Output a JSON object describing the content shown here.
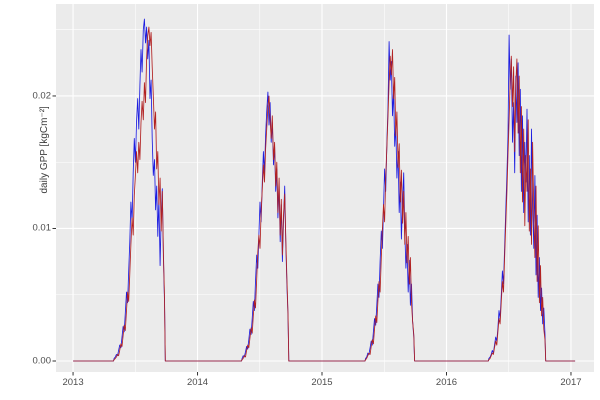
{
  "figure": {
    "background": "#ffffff",
    "panel_background": "#ebebeb",
    "grid_major_color": "#ffffff",
    "grid_minor_color": "#ffffff",
    "tick_mark_color": "#333333",
    "tick_label_color": "#4d4d4d"
  },
  "chart_data": {
    "type": "line",
    "title": "",
    "xlabel": "",
    "ylabel": "daily GPP [kgCm⁻²]",
    "legend": "none",
    "grid": true,
    "xlim": [
      2012.863,
      2017.185
    ],
    "ylim": [
      -0.00083,
      0.02694
    ],
    "x_ticks": [
      "2013",
      "2014",
      "2015",
      "2016",
      "2017"
    ],
    "x_tick_values": [
      2013,
      2014,
      2015,
      2016,
      2017
    ],
    "x_minor": [
      2013.5,
      2014.5,
      2015.5,
      2016.5
    ],
    "y_ticks": [
      "0.00",
      "0.01",
      "0.02"
    ],
    "y_tick_values": [
      0,
      0.01,
      0.02
    ],
    "y_minor": [
      0.005,
      0.015,
      0.025
    ],
    "y_scale": 0.0001,
    "series": [
      {
        "name": "series-blue",
        "color": "#1d1de0",
        "segments": [
          {
            "x0": 2013.0,
            "dx": 0.325,
            "v": [
              0,
              0
            ]
          },
          {
            "x0": 2013.33,
            "dx": 0.009,
            "v": [
              2,
              3,
              5,
              4,
              8,
              12,
              10,
              18,
              26,
              22,
              36,
              52,
              44,
              68,
              90,
              120,
              105,
              142,
              168,
              150,
              180,
              198,
              175,
              208,
              235,
              218,
              250,
              258,
              240,
              252,
              228,
              242,
              198,
              212,
              168,
              140,
              152,
              114,
              132,
              94,
              122,
              72,
              110,
              130,
              78,
              45
            ]
          },
          {
            "x0": 2013.741,
            "dx": 0.612,
            "v": [
              0,
              0
            ]
          },
          {
            "x0": 2014.358,
            "dx": 0.009,
            "v": [
              2,
              4,
              3,
              7,
              11,
              9,
              16,
              24,
              20,
              32,
              45,
              38,
              60,
              80,
              70,
              95,
              120,
              105,
              135,
              158,
              142,
              170,
              188,
              203,
              178,
              195,
              165,
              180,
              148,
              162,
              128,
              145,
              108,
              132,
              90,
              118,
              75,
              105,
              132,
              88,
              58,
              34
            ]
          },
          {
            "x0": 2014.733,
            "dx": 0.612,
            "v": [
              0,
              0
            ]
          },
          {
            "x0": 2015.35,
            "dx": 0.009,
            "v": [
              2,
              3,
              6,
              5,
              10,
              15,
              12,
              22,
              32,
              27,
              42,
              58,
              48,
              75,
              98,
              85,
              115,
              145,
              128,
              165,
              192,
              241,
              212,
              226,
              185,
              205,
              162,
              178,
              138,
              158,
              112,
              135,
              92,
              120,
              142,
              98,
              70,
              88,
              52,
              76,
              42,
              58,
              30,
              18
            ]
          },
          {
            "x0": 2015.744,
            "dx": 0.592,
            "v": [
              0,
              0
            ]
          },
          {
            "x0": 2016.341,
            "dx": 0.009,
            "v": [
              2,
              3,
              5,
              8,
              6,
              12,
              18,
              15,
              25,
              38,
              32,
              50,
              68,
              58,
              85,
              112,
              140,
              170,
              246,
              205,
              228,
              165,
              195,
              142,
              215,
              180,
              225,
              155,
              205,
              128,
              185,
              112,
              165,
              135,
              190,
              105,
              155,
              95,
              175,
              120,
              85,
              140,
              65,
              110,
              48,
              78,
              38,
              55,
              28,
              40,
              20
            ]
          },
          {
            "x0": 2016.797,
            "dx": 0.236,
            "v": [
              0,
              0
            ]
          }
        ]
      },
      {
        "name": "series-red",
        "color": "#b22222",
        "segments": [
          {
            "x0": 2013.0,
            "dx": 0.325,
            "v": [
              0,
              0
            ]
          },
          {
            "x0": 2013.33,
            "dx": 0.009,
            "v": [
              1,
              2,
              3,
              5,
              4,
              8,
              13,
              11,
              19,
              27,
              23,
              38,
              52,
              45,
              66,
              88,
              108,
              95,
              125,
              140,
              158,
              142,
              165,
              152,
              180,
              196,
              182,
              210,
              195,
              228,
              245,
              252,
              238,
              248,
              222,
              200,
              175,
              188,
              145,
              158,
              118,
              138,
              98,
              128,
              82,
              48
            ]
          },
          {
            "x0": 2013.741,
            "dx": 0.612,
            "v": [
              0,
              0
            ]
          },
          {
            "x0": 2014.358,
            "dx": 0.009,
            "v": [
              1,
              2,
              4,
              3,
              8,
              12,
              10,
              17,
              25,
              21,
              34,
              46,
              40,
              62,
              82,
              95,
              85,
              112,
              130,
              148,
              135,
              160,
              175,
              192,
              200,
              182,
              168,
              185,
              152,
              165,
              132,
              150,
              112,
              138,
              95,
              122,
              80,
              110,
              126,
              92,
              62,
              36
            ]
          },
          {
            "x0": 2014.733,
            "dx": 0.612,
            "v": [
              0,
              0
            ]
          },
          {
            "x0": 2015.35,
            "dx": 0.009,
            "v": [
              1,
              2,
              4,
              6,
              5,
              11,
              16,
              13,
              24,
              34,
              29,
              45,
              60,
              52,
              78,
              100,
              118,
              105,
              138,
              162,
              185,
              210,
              230,
              216,
              235,
              198,
              214,
              170,
              188,
              146,
              164,
              120,
              144,
              104,
              128,
              88,
              112,
              74,
              94,
              58,
              78,
              44,
              30,
              20
            ]
          },
          {
            "x0": 2015.744,
            "dx": 0.592,
            "v": [
              0,
              0
            ]
          },
          {
            "x0": 2016.341,
            "dx": 0.009,
            "v": [
              1,
              2,
              4,
              6,
              5,
              10,
              15,
              12,
              22,
              32,
              28,
              45,
              60,
              52,
              78,
              102,
              128,
              155,
              182,
              212,
              230,
              192,
              222,
              158,
              208,
              228,
              172,
              215,
              142,
              192,
              120,
              175,
              102,
              155,
              128,
              182,
              98,
              145,
              88,
              165,
              112,
              78,
              132,
              60,
              102,
              44,
              72,
              34,
              48,
              24,
              16
            ]
          },
          {
            "x0": 2016.797,
            "dx": 0.236,
            "v": [
              0,
              0
            ]
          }
        ]
      }
    ]
  }
}
